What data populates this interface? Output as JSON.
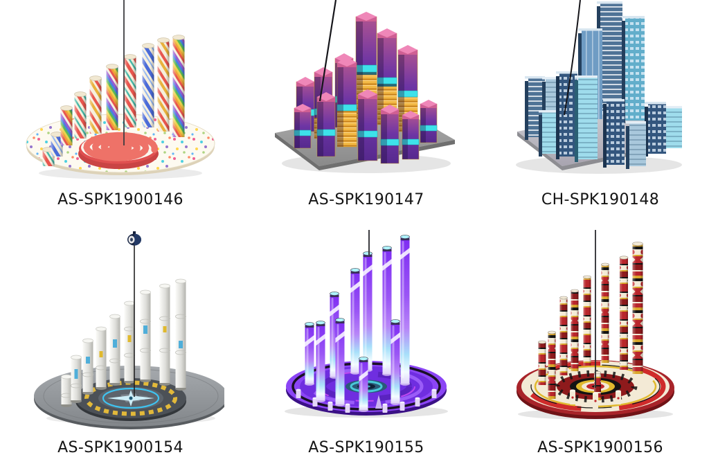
{
  "page": {
    "background": "#ffffff",
    "caption_color": "#141414"
  },
  "items": [
    {
      "id": "AS-SPK1900146",
      "figure": "candy-stripe-columns-with-lollipop-spiral-base",
      "accents": [
        "#e8564e",
        "#46b8a8",
        "#f6efdd"
      ]
    },
    {
      "id": "AS-SPK190147",
      "figure": "purple-gold-circuit-tower-blocks-on-grey-plate",
      "accents": [
        "#5a2d96",
        "#3ee2ea",
        "#f2b844"
      ]
    },
    {
      "id": "CH-SPK190148",
      "figure": "blue-glass-skyscraper-city-on-grey-plate",
      "accents": [
        "#4f7396",
        "#9fdcec",
        "#33567e"
      ]
    },
    {
      "id": "AS-SPK1900154",
      "figure": "grey-rocket-columns-with-compass-disc-and-pulley",
      "accents": [
        "#d6d6d0",
        "#3fc3f0",
        "#e2b93a"
      ]
    },
    {
      "id": "AS-SPK190155",
      "figure": "neon-violet-glow-tubes-on-purple-disc",
      "accents": [
        "#8b45f5",
        "#aef2fb",
        "#c84bf0"
      ]
    },
    {
      "id": "AS-SPK1900156",
      "figure": "red-black-totem-columns-on-target-disc",
      "accents": [
        "#b9262c",
        "#f3ead6",
        "#d9a52b"
      ]
    }
  ]
}
